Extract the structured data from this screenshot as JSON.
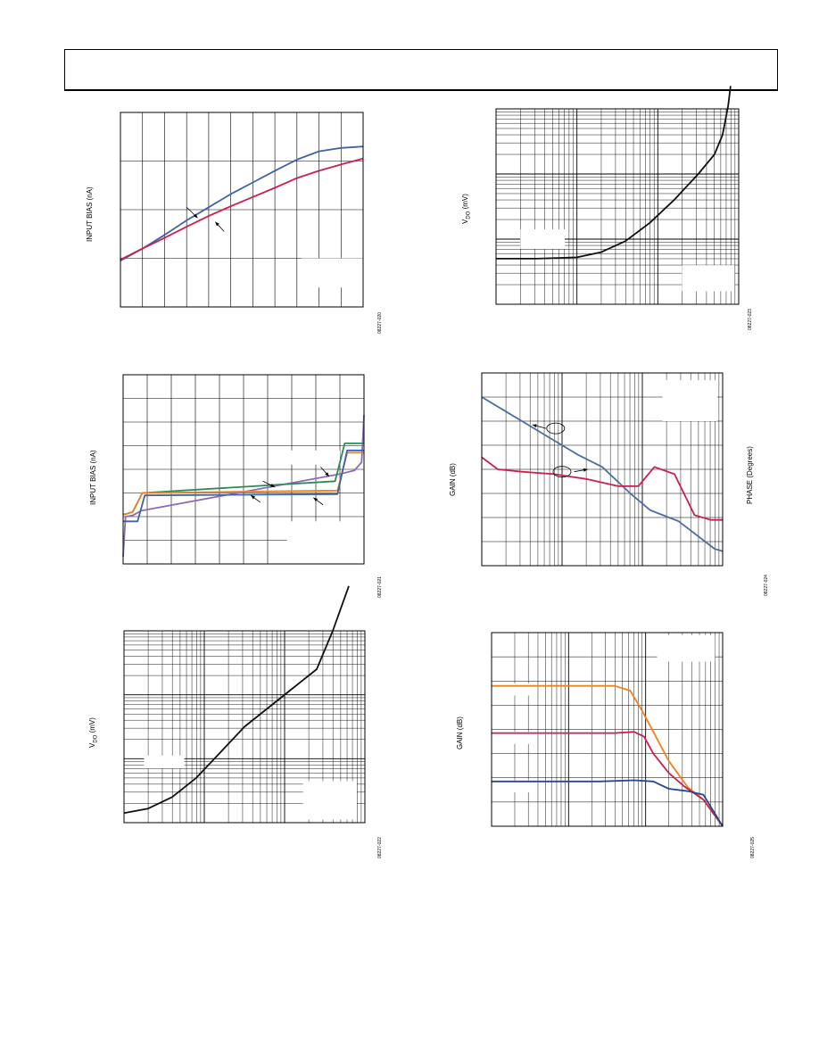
{
  "page": {
    "header": ""
  },
  "chart_data": [
    {
      "id": "p1",
      "type": "line",
      "ylabel": "INPUT BIAS (nA)",
      "figure_id": "08227-020",
      "grid": true,
      "xlim": [
        0,
        11
      ],
      "ylim": [
        0,
        4
      ],
      "series": [
        {
          "color": "#3e64a8",
          "x": [
            0,
            1,
            2,
            3,
            4,
            5,
            6,
            7,
            8,
            9,
            10,
            11
          ],
          "y": [
            0.95,
            1.2,
            1.48,
            1.78,
            2.05,
            2.32,
            2.56,
            2.8,
            3.03,
            3.2,
            3.27,
            3.3
          ]
        },
        {
          "color": "#cc1f4e",
          "x": [
            0,
            1,
            2,
            3,
            4,
            5,
            6,
            7,
            8,
            9,
            10,
            11
          ],
          "y": [
            0.97,
            1.2,
            1.42,
            1.65,
            1.87,
            2.07,
            2.26,
            2.45,
            2.65,
            2.8,
            2.93,
            3.05
          ]
        }
      ],
      "arrows": [
        {
          "from": [
            3.0,
            2.05
          ],
          "to": [
            3.5,
            1.83
          ]
        },
        {
          "from": [
            4.7,
            1.55
          ],
          "to": [
            4.3,
            1.75
          ]
        }
      ],
      "label_boxes": [
        {
          "x": [
            8.2,
            11
          ],
          "y": [
            0.4,
            1.0
          ]
        }
      ]
    },
    {
      "id": "p2",
      "type": "line",
      "ylabel": "INPUT BIAS (nA)",
      "figure_id": "08227-021",
      "grid": true,
      "xlim": [
        0,
        10
      ],
      "ylim": [
        0,
        8
      ],
      "series": [
        {
          "color": "#8b6bb8",
          "x": [
            0,
            0.1,
            0.4,
            0.75,
            9.0,
            9.6,
            9.9,
            10
          ],
          "y": [
            0.3,
            2.0,
            2.05,
            2.25,
            3.8,
            3.95,
            4.3,
            6.3
          ]
        },
        {
          "color": "#2e8b57",
          "x": [
            0,
            0.1,
            0.4,
            0.8,
            8.8,
            9.2,
            10
          ],
          "y": [
            2.1,
            2.1,
            2.2,
            3.0,
            3.5,
            5.1,
            5.1
          ]
        },
        {
          "color": "#f07f23",
          "x": [
            0,
            0.1,
            0.4,
            0.8,
            8.9,
            9.3,
            10
          ],
          "y": [
            2.1,
            2.1,
            2.2,
            3.0,
            3.1,
            4.7,
            4.7
          ]
        },
        {
          "color": "#3e64a8",
          "x": [
            0,
            0.1,
            0.6,
            0.9,
            8.9,
            9.3,
            10
          ],
          "y": [
            1.8,
            1.8,
            1.8,
            2.9,
            2.95,
            4.8,
            4.8
          ]
        }
      ],
      "arrows": [
        {
          "from": [
            5.8,
            3.5
          ],
          "to": [
            6.3,
            3.25
          ]
        },
        {
          "from": [
            5.7,
            2.6
          ],
          "to": [
            5.3,
            2.9
          ]
        },
        {
          "from": [
            8.2,
            4.1
          ],
          "to": [
            8.55,
            3.7
          ]
        },
        {
          "from": [
            8.3,
            2.5
          ],
          "to": [
            7.9,
            2.8
          ]
        }
      ],
      "label_boxes": [
        {
          "x": [
            6.8,
            10
          ],
          "y": [
            0,
            1.8
          ]
        },
        {
          "x": [
            6.5,
            9.0
          ],
          "y": [
            4.2,
            4.8
          ]
        }
      ]
    },
    {
      "id": "p3",
      "type": "line",
      "ylabel_main": "V",
      "ylabel_sub": "DO",
      "ylabel_tail": " (mV)",
      "figure_id": "08227-022",
      "grid": "log-log",
      "xlim": [
        0,
        3
      ],
      "ylim": [
        0,
        3
      ],
      "series": [
        {
          "color": "#111111",
          "x": [
            0,
            0.3,
            0.6,
            0.9,
            1.2,
            1.5,
            1.8,
            2.1,
            2.4,
            2.6,
            2.8
          ],
          "y": [
            0.15,
            0.22,
            0.4,
            0.7,
            1.1,
            1.5,
            1.8,
            2.1,
            2.4,
            3.0,
            3.7
          ]
        }
      ],
      "label_boxes": [
        {
          "x": [
            0.25,
            0.75
          ],
          "y": [
            0.85,
            1.05
          ]
        },
        {
          "x": [
            2.23,
            2.9
          ],
          "y": [
            0.05,
            0.65
          ]
        }
      ]
    },
    {
      "id": "p4",
      "type": "line",
      "ylabel_main": "V",
      "ylabel_sub": "DO",
      "ylabel_tail": " (mV)",
      "figure_id": "08227-023",
      "grid": "log-log",
      "xlim": [
        0,
        3
      ],
      "ylim": [
        0,
        3
      ],
      "series": [
        {
          "color": "#111111",
          "x": [
            0,
            0.5,
            1.0,
            1.3,
            1.6,
            1.9,
            2.2,
            2.5,
            2.7,
            2.8,
            2.87,
            2.9
          ],
          "y": [
            0.7,
            0.7,
            0.72,
            0.8,
            0.97,
            1.25,
            1.6,
            2.0,
            2.3,
            2.6,
            3.05,
            3.35
          ]
        }
      ],
      "label_boxes": [
        {
          "x": [
            0.3,
            0.85
          ],
          "y": [
            0.85,
            1.15
          ]
        },
        {
          "x": [
            2.3,
            2.95
          ],
          "y": [
            0.2,
            0.6
          ]
        }
      ]
    },
    {
      "id": "p5",
      "type": "line",
      "ylabel": "GAIN (dB)",
      "y2label": "PHASE (Degrees)",
      "figure_id": "08227-024",
      "grid": "semilog-x",
      "xlim": [
        0,
        3
      ],
      "ylim": [
        0,
        8
      ],
      "series": [
        {
          "name": "",
          "color": "#4c6f9e",
          "x": [
            0,
            0.3,
            0.6,
            0.9,
            1.2,
            1.5,
            1.85,
            2.1,
            2.45,
            2.9,
            3.0
          ],
          "y": [
            7.0,
            6.4,
            5.8,
            5.2,
            4.6,
            4.1,
            3.0,
            2.3,
            1.85,
            0.7,
            0.6
          ]
        },
        {
          "name": "",
          "color": "#cc1f4e",
          "x": [
            0,
            0.2,
            0.5,
            0.9,
            1.3,
            1.7,
            1.95,
            2.15,
            2.4,
            2.65,
            2.85,
            3.0
          ],
          "y": [
            4.5,
            4.0,
            3.9,
            3.8,
            3.6,
            3.3,
            3.3,
            4.1,
            3.8,
            2.1,
            1.9,
            1.9
          ]
        }
      ],
      "circles": [
        {
          "cx": 0.92,
          "cy": 5.7
        },
        {
          "cx": 1.0,
          "cy": 3.9
        }
      ],
      "arrows": [
        {
          "from": [
            0.8,
            5.7
          ],
          "to": [
            0.63,
            5.85
          ]
        },
        {
          "from": [
            1.15,
            3.9
          ],
          "to": [
            1.32,
            4.0
          ]
        }
      ],
      "label_boxes": [
        {
          "x": [
            2.25,
            2.93
          ],
          "y": [
            6.0,
            7.7
          ]
        }
      ]
    },
    {
      "id": "p6",
      "type": "line",
      "ylabel": "GAIN (dB)",
      "figure_id": "08227-025",
      "grid": "semilog-x",
      "xlim": [
        0,
        3
      ],
      "ylim": [
        0,
        8
      ],
      "series": [
        {
          "name": "",
          "color": "#f07f23",
          "x": [
            0,
            0.7,
            1.6,
            1.8,
            1.95,
            2.1,
            2.3,
            2.55,
            2.75,
            3.0
          ],
          "y": [
            5.8,
            5.8,
            5.8,
            5.6,
            4.8,
            3.9,
            2.7,
            1.6,
            1.1,
            0.0
          ]
        },
        {
          "name": "",
          "color": "#cc1f4e",
          "x": [
            0,
            0.7,
            1.6,
            1.85,
            1.98,
            2.1,
            2.3,
            2.5,
            2.75,
            3.0
          ],
          "y": [
            3.85,
            3.85,
            3.85,
            3.9,
            3.7,
            3.0,
            2.2,
            1.65,
            1.1,
            0.0
          ]
        },
        {
          "name": "",
          "color": "#25498f",
          "x": [
            0,
            0.7,
            1.4,
            1.85,
            2.1,
            2.3,
            2.55,
            2.75,
            3.0
          ],
          "y": [
            1.85,
            1.85,
            1.85,
            1.9,
            1.85,
            1.55,
            1.45,
            1.3,
            0.0
          ]
        }
      ],
      "label_boxes": [
        {
          "x": [
            2.15,
            2.9
          ],
          "y": [
            6.8,
            7.9
          ]
        },
        {
          "x": [
            0.05,
            0.5
          ],
          "y": [
            5.4,
            5.9
          ]
        },
        {
          "x": [
            0.05,
            0.5
          ],
          "y": [
            3.4,
            3.9
          ]
        },
        {
          "x": [
            0.05,
            0.5
          ],
          "y": [
            1.4,
            1.9
          ]
        }
      ]
    }
  ]
}
